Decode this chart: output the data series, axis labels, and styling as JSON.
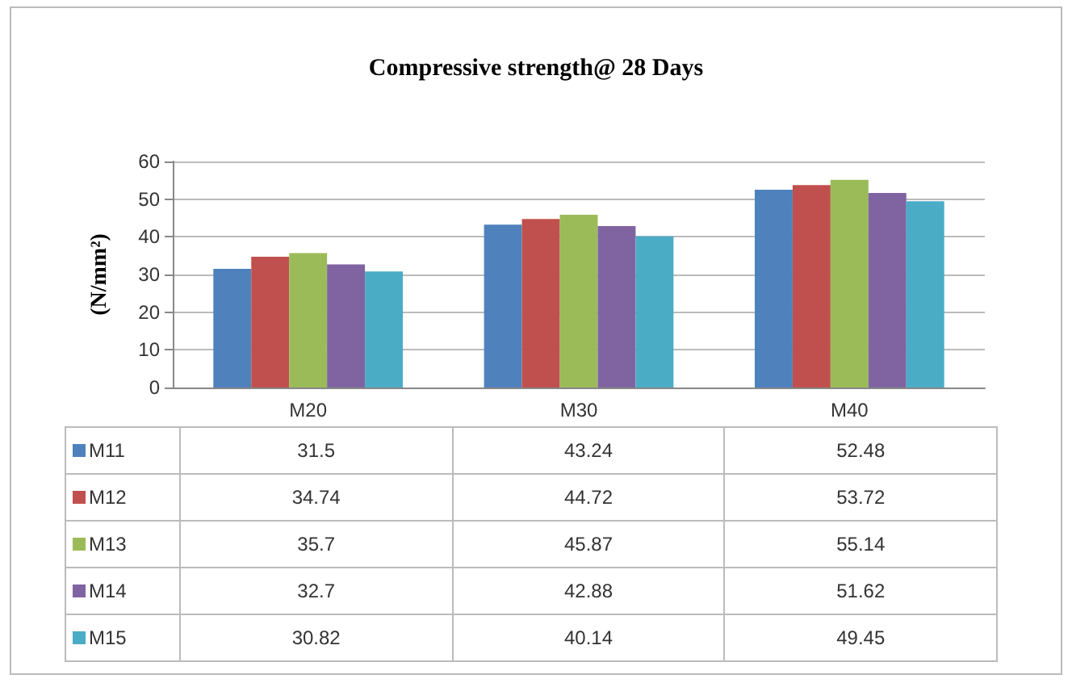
{
  "chart_data": {
    "type": "bar",
    "title": "Compressive strength@ 28 Days",
    "ylabel": "(N/mm²)",
    "categories": [
      "M20",
      "M30",
      "M40"
    ],
    "series": [
      {
        "name": "M11",
        "color": "#4f81bd",
        "values": [
          31.5,
          43.24,
          52.48
        ]
      },
      {
        "name": "M12",
        "color": "#c0504d",
        "values": [
          34.74,
          44.72,
          53.72
        ]
      },
      {
        "name": "M13",
        "color": "#9bbb59",
        "values": [
          35.7,
          45.87,
          55.14
        ]
      },
      {
        "name": "M14",
        "color": "#8064a2",
        "values": [
          32.7,
          42.88,
          51.62
        ]
      },
      {
        "name": "M15",
        "color": "#4bacc6",
        "values": [
          30.82,
          40.14,
          49.45
        ]
      }
    ],
    "ylim": [
      0,
      60
    ],
    "yticks": [
      0,
      10,
      20,
      30,
      40,
      50,
      60
    ],
    "grid": "y",
    "legend": "bottom",
    "data_labels": true
  }
}
